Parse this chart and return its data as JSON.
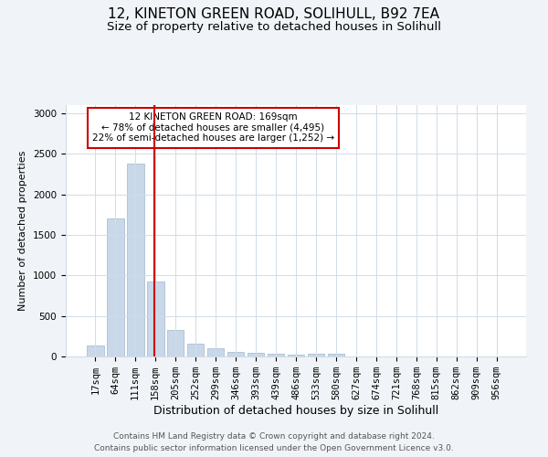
{
  "title": "12, KINETON GREEN ROAD, SOLIHULL, B92 7EA",
  "subtitle": "Size of property relative to detached houses in Solihull",
  "xlabel": "Distribution of detached houses by size in Solihull",
  "ylabel": "Number of detached properties",
  "footer": "Contains HM Land Registry data © Crown copyright and database right 2024.\nContains public sector information licensed under the Open Government Licence v3.0.",
  "categories": [
    "17sqm",
    "64sqm",
    "111sqm",
    "158sqm",
    "205sqm",
    "252sqm",
    "299sqm",
    "346sqm",
    "393sqm",
    "439sqm",
    "486sqm",
    "533sqm",
    "580sqm",
    "627sqm",
    "674sqm",
    "721sqm",
    "768sqm",
    "815sqm",
    "862sqm",
    "909sqm",
    "956sqm"
  ],
  "values": [
    130,
    1700,
    2380,
    930,
    330,
    155,
    100,
    55,
    40,
    30,
    20,
    30,
    30,
    5,
    5,
    3,
    2,
    2,
    1,
    1,
    1
  ],
  "bar_color": "#c8d8e8",
  "bar_edgecolor": "#a0b8cc",
  "vline_x": 2.925,
  "vline_color": "#cc0000",
  "annotation_text": "12 KINETON GREEN ROAD: 169sqm\n← 78% of detached houses are smaller (4,495)\n22% of semi-detached houses are larger (1,252) →",
  "annotation_box_color": "#ffffff",
  "annotation_box_edgecolor": "#cc0000",
  "ylim": [
    0,
    3100
  ],
  "yticks": [
    0,
    500,
    1000,
    1500,
    2000,
    2500,
    3000
  ],
  "bg_color": "#f0f4f8",
  "plot_bg_color": "#ffffff",
  "grid_color": "#d0dce8",
  "title_fontsize": 11,
  "subtitle_fontsize": 9.5,
  "xlabel_fontsize": 9,
  "ylabel_fontsize": 8,
  "tick_fontsize": 7.5,
  "annotation_fontsize": 7.5,
  "footer_fontsize": 6.5
}
